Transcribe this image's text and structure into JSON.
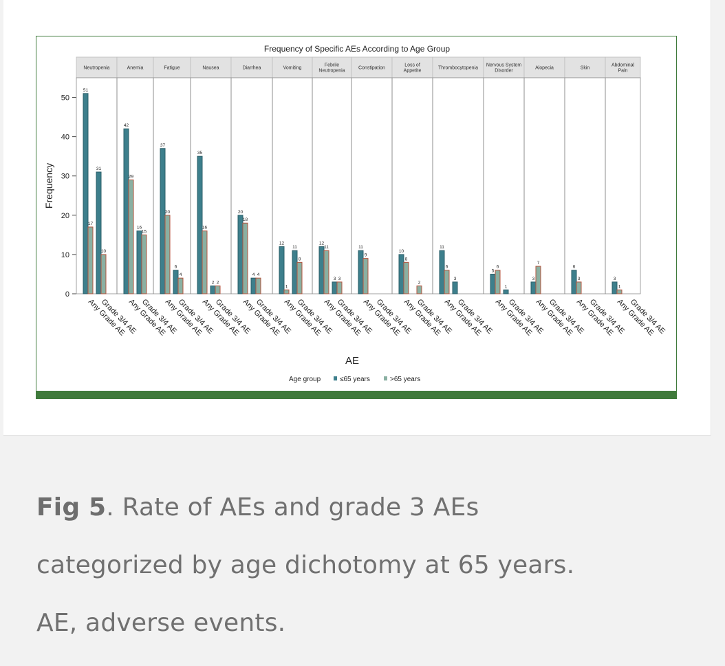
{
  "caption": {
    "label": "Fig 5",
    "text_line1": ". Rate of AEs and grade 3 AEs",
    "text_line2": "categorized by age dichotomy at 65 years.",
    "text_line3": "AE, adverse events."
  },
  "colors": {
    "le65": "#3d7f8c",
    "gt65": "#8ab0a2",
    "bar_outline_gt65": "#b5533c",
    "panel_header": "#e2e2e2",
    "frame_green": "#3f7a3b"
  },
  "chart_data": {
    "type": "bar",
    "title": "Frequency of Specific AEs According to Age Group",
    "xlabel": "AE",
    "ylabel": "Frequency",
    "ylim": [
      0,
      55
    ],
    "yticks": [
      0,
      10,
      20,
      30,
      40,
      50
    ],
    "legend_title": "Age group",
    "legend_position": "bottom",
    "x_categories": [
      "Any Grade AE",
      "Grade 3/4 AE"
    ],
    "series_names": [
      "≤65 years",
      ">65 years"
    ],
    "panels": [
      {
        "name": "Neutropenia",
        "le65": [
          51,
          31
        ],
        "gt65": [
          17,
          10
        ]
      },
      {
        "name": "Anemia",
        "le65": [
          42,
          16
        ],
        "gt65": [
          29,
          15
        ]
      },
      {
        "name": "Fatigue",
        "le65": [
          37,
          6
        ],
        "gt65": [
          20,
          4
        ]
      },
      {
        "name": "Nausea",
        "le65": [
          35,
          2
        ],
        "gt65": [
          16,
          2
        ]
      },
      {
        "name": "Diarrhea",
        "le65": [
          20,
          4
        ],
        "gt65": [
          18,
          4
        ]
      },
      {
        "name": "Vomiting",
        "le65": [
          12,
          11
        ],
        "gt65": [
          1,
          8
        ]
      },
      {
        "name": "Febrile Neutropenia",
        "le65": [
          12,
          3
        ],
        "gt65": [
          11,
          3
        ]
      },
      {
        "name": "Constipation",
        "le65": [
          11,
          null
        ],
        "gt65": [
          9,
          null
        ]
      },
      {
        "name": "Loss of Appetite",
        "le65": [
          10,
          null
        ],
        "gt65": [
          8,
          2
        ]
      },
      {
        "name": "Thrombocytopenia",
        "le65": [
          11,
          3
        ],
        "gt65": [
          6,
          null
        ]
      },
      {
        "name": "Nervous System Disorder",
        "le65": [
          5,
          1
        ],
        "gt65": [
          6,
          null
        ]
      },
      {
        "name": "Alopecia",
        "le65": [
          3,
          null
        ],
        "gt65": [
          7,
          null
        ]
      },
      {
        "name": "Skin",
        "le65": [
          6,
          null
        ],
        "gt65": [
          3,
          null
        ]
      },
      {
        "name": "Abdominal Pain",
        "le65": [
          3,
          null
        ],
        "gt65": [
          1,
          null
        ]
      }
    ]
  }
}
